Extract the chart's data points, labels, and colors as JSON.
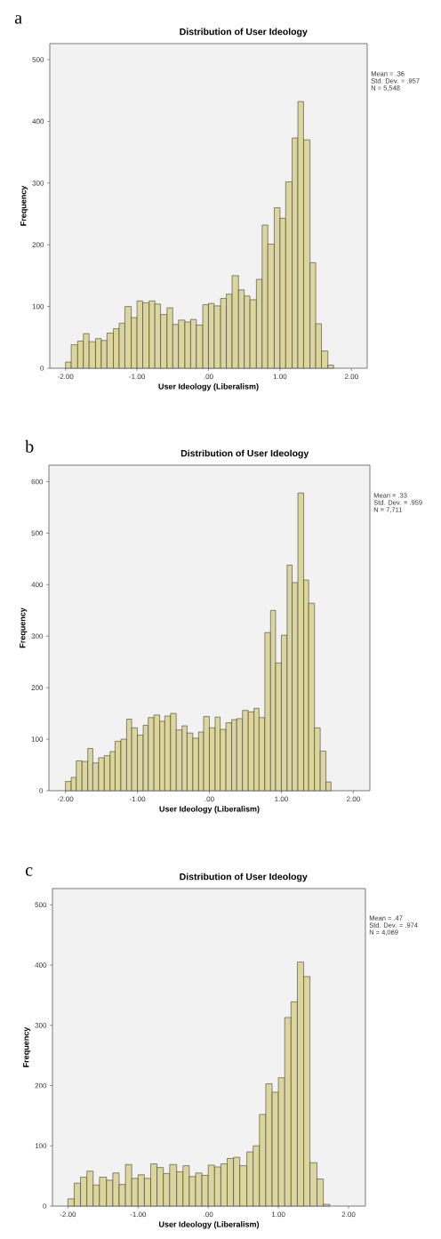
{
  "chart_data": [
    {
      "type": "histogram",
      "title": "Distribution of User Ideology",
      "xlabel": "User Ideology (Liberalism)",
      "ylabel": "Frequency",
      "color": "#dcd59c",
      "annotations": [
        "a",
        "Mean = .36",
        "Std. Dev. = .957",
        "N = 5,548"
      ],
      "bins": [
        -2,
        -1.92,
        -1.83,
        -1.75,
        -1.67,
        -1.58,
        -1.5,
        -1.42,
        -1.33,
        -1.25,
        -1.17,
        -1.08,
        -1,
        -0.92,
        -0.83,
        -0.75,
        -0.67,
        -0.58,
        -0.5,
        -0.42,
        -0.33,
        -0.25,
        -0.17,
        -0.08,
        0,
        0.08,
        0.17,
        0.25,
        0.33,
        0.42,
        0.5,
        0.58,
        0.67,
        0.75,
        0.83,
        0.92,
        1,
        1.08,
        1.17,
        1.25,
        1.33,
        1.42,
        1.5,
        1.58,
        1.67,
        1.75
      ],
      "values": [
        10,
        38,
        44,
        56,
        43,
        48,
        45,
        57,
        64,
        73,
        100,
        82,
        109,
        106,
        109,
        104,
        87,
        98,
        71,
        78,
        75,
        79,
        70,
        103,
        105,
        101,
        113,
        120,
        150,
        127,
        117,
        111,
        144,
        232,
        201,
        260,
        243,
        302,
        373,
        432,
        370,
        171,
        72,
        28,
        5
      ],
      "xlim": [
        -2.22,
        2.22
      ],
      "ylim": [
        0,
        526
      ],
      "xticks": [
        {
          "value": -2,
          "label": "-2.00"
        },
        {
          "value": -1,
          "label": "-1.00"
        },
        {
          "value": 0,
          "label": ".00"
        },
        {
          "value": 1,
          "label": "1.00"
        },
        {
          "value": 2,
          "label": "2.00"
        }
      ],
      "yticks": [
        0,
        100,
        200,
        300,
        400,
        500
      ]
    },
    {
      "type": "histogram",
      "title": "Distribution of User Ideology",
      "xlabel": "User Ideology (Liberalism)",
      "ylabel": "Frequency",
      "color": "#dcd59c",
      "annotations": [
        "b",
        "Mean = .33",
        "Std. Dev. = .959",
        "N = 7,711"
      ],
      "bins": [
        -2,
        -1.92,
        -1.85,
        -1.77,
        -1.69,
        -1.62,
        -1.54,
        -1.46,
        -1.38,
        -1.31,
        -1.23,
        -1.15,
        -1.08,
        -1,
        -0.92,
        -0.85,
        -0.77,
        -0.69,
        -0.62,
        -0.54,
        -0.46,
        -0.38,
        -0.31,
        -0.23,
        -0.15,
        -0.08,
        0,
        0.08,
        0.15,
        0.23,
        0.31,
        0.38,
        0.46,
        0.54,
        0.62,
        0.69,
        0.77,
        0.85,
        0.92,
        1,
        1.08,
        1.15,
        1.23,
        1.31,
        1.38,
        1.46,
        1.54,
        1.62,
        1.69
      ],
      "values": [
        18,
        26,
        58,
        57,
        82,
        54,
        64,
        68,
        76,
        96,
        100,
        139,
        122,
        108,
        127,
        142,
        147,
        135,
        145,
        150,
        118,
        126,
        112,
        102,
        114,
        144,
        122,
        143,
        119,
        132,
        138,
        140,
        156,
        153,
        160,
        142,
        307,
        350,
        248,
        302,
        438,
        404,
        578,
        409,
        364,
        122,
        77,
        17
      ],
      "xlim": [
        -2.23,
        2.23
      ],
      "ylim": [
        0,
        632
      ],
      "xticks": [
        {
          "value": -2,
          "label": "-2.00"
        },
        {
          "value": -1,
          "label": "-1.00"
        },
        {
          "value": 0,
          "label": ".00"
        },
        {
          "value": 1,
          "label": "1.00"
        },
        {
          "value": 2,
          "label": "2.00"
        }
      ],
      "yticks": [
        0,
        100,
        200,
        300,
        400,
        500,
        600
      ]
    },
    {
      "type": "histogram",
      "title": "Distribution of User Ideology",
      "xlabel": "User Ideology (Liberalism)",
      "ylabel": "Frequency",
      "color": "#dcd59c",
      "annotations": [
        "c",
        "Mean = .47",
        "Std. Dev. = .974",
        "N = 4,069"
      ],
      "bins": [
        -2,
        -1.91,
        -1.82,
        -1.73,
        -1.64,
        -1.55,
        -1.45,
        -1.36,
        -1.27,
        -1.18,
        -1.09,
        -1,
        -0.91,
        -0.82,
        -0.73,
        -0.64,
        -0.55,
        -0.45,
        -0.36,
        -0.27,
        -0.18,
        -0.09,
        0,
        0.09,
        0.18,
        0.27,
        0.36,
        0.45,
        0.55,
        0.64,
        0.73,
        0.82,
        0.91,
        1,
        1.09,
        1.18,
        1.27,
        1.36,
        1.45,
        1.55,
        1.64,
        1.73
      ],
      "values": [
        12,
        38,
        48,
        58,
        35,
        48,
        43,
        55,
        36,
        69,
        46,
        52,
        46,
        70,
        64,
        54,
        69,
        57,
        67,
        49,
        55,
        51,
        68,
        65,
        70,
        79,
        81,
        67,
        90,
        100,
        152,
        203,
        189,
        213,
        313,
        339,
        405,
        381,
        72,
        45,
        3
      ],
      "xlim": [
        -2.22,
        2.24
      ],
      "ylim": [
        0,
        527
      ],
      "xticks": [
        {
          "value": -2,
          "label": "-2.00"
        },
        {
          "value": -1,
          "label": "-1.00"
        },
        {
          "value": 0,
          "label": ".00"
        },
        {
          "value": 1,
          "label": "1.00"
        },
        {
          "value": 2,
          "label": "2.00"
        }
      ],
      "yticks": [
        0,
        100,
        200,
        300,
        400,
        500
      ]
    }
  ]
}
